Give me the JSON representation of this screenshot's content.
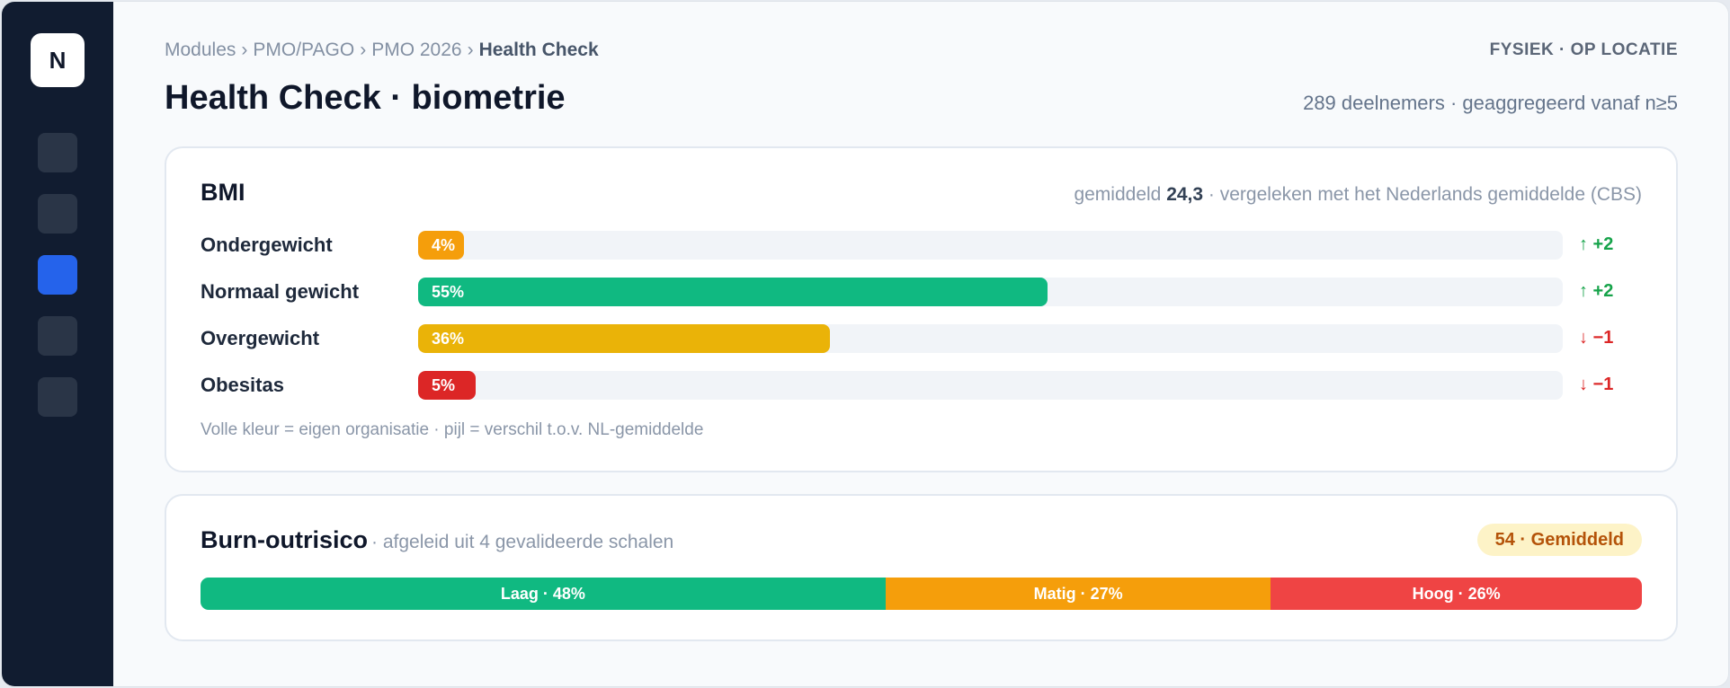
{
  "app": {
    "logo_letter": "N"
  },
  "sidebar": {
    "items": [
      "nav-1",
      "nav-2",
      "nav-3",
      "nav-4",
      "nav-5"
    ],
    "active_index": 2
  },
  "breadcrumb": {
    "items": [
      "Modules",
      "PMO/PAGO",
      "PMO 2026"
    ],
    "current": "Health Check",
    "separator": "›"
  },
  "header": {
    "mode": "FYSIEK · OP LOCATIE",
    "title": "Health Check · biometrie",
    "participants": "289 deelnemers · geaggregeerd vanaf n≥5"
  },
  "bmi": {
    "title": "BMI",
    "note_prefix": "gemiddeld",
    "note_value": "24,3",
    "note_suffix": "· vergeleken met het Nederlands gemiddelde (CBS)",
    "rows": [
      {
        "label": "Ondergewicht",
        "percent": 4,
        "percent_label": "4%",
        "color": "#f59e0b",
        "delta": "↑ +2",
        "delta_color": "#16a34a"
      },
      {
        "label": "Normaal gewicht",
        "percent": 55,
        "percent_label": "55%",
        "color": "#10b981",
        "delta": "↑ +2",
        "delta_color": "#16a34a"
      },
      {
        "label": "Overgewicht",
        "percent": 36,
        "percent_label": "36%",
        "color": "#eab308",
        "delta": "↓ −1",
        "delta_color": "#dc2626"
      },
      {
        "label": "Obesitas",
        "percent": 5,
        "percent_label": "5%",
        "color": "#dc2626",
        "delta": "↓ −1",
        "delta_color": "#dc2626"
      }
    ],
    "legend": "Volle kleur = eigen organisatie · pijl = verschil t.o.v. NL-gemiddelde"
  },
  "burnout": {
    "title": "Burn-outrisico",
    "subtitle": "· afgeleid uit 4 gevalideerde schalen",
    "badge": "54 · Gemiddeld",
    "segments": [
      {
        "label": "Laag · 48%",
        "percent": 48,
        "color": "#10b981"
      },
      {
        "label": "Matig · 27%",
        "percent": 27,
        "color": "#f59e0b"
      },
      {
        "label": "Hoog · 26%",
        "percent": 26,
        "color": "#ef4444"
      }
    ]
  }
}
